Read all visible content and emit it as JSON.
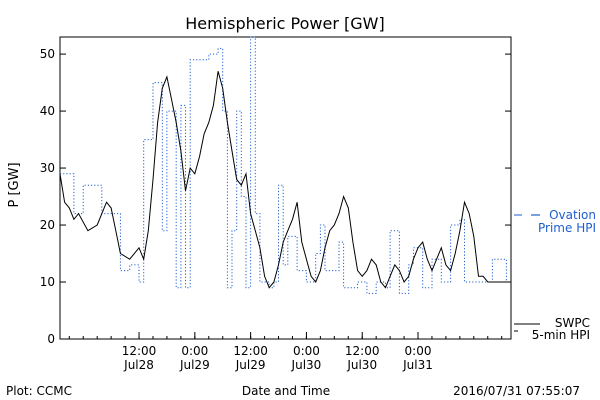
{
  "chart_data": {
    "type": "line",
    "title": "Hemispheric Power [GW]",
    "ylabel": "P [GW]",
    "xlabel": "Date and Time",
    "ylim": [
      0,
      53
    ],
    "xlim": [
      "2016-07-27 19:00",
      "2016-07-31 20:00"
    ],
    "yticks": [
      0,
      10,
      20,
      30,
      40,
      50
    ],
    "xticks": [
      {
        "time": "2016-07-28 12:00",
        "label1": "12:00",
        "label2": "Jul28"
      },
      {
        "time": "2016-07-29 00:00",
        "label1": "0:00",
        "label2": "Jul29"
      },
      {
        "time": "2016-07-29 12:00",
        "label1": "12:00",
        "label2": "Jul29"
      },
      {
        "time": "2016-07-30 00:00",
        "label1": "0:00",
        "label2": "Jul30"
      },
      {
        "time": "2016-07-30 12:00",
        "label1": "12:00",
        "label2": "Jul30"
      },
      {
        "time": "2016-07-31 00:00",
        "label1": "0:00",
        "label2": "Jul31"
      }
    ],
    "grid": false,
    "series": [
      {
        "name": "SWPC 5-min HPI",
        "legend_line1": "SWPC",
        "legend_line2": "5-min HPI",
        "color": "#000000",
        "style": "solid",
        "points": [
          [
            "2016-07-27 19:00",
            29
          ],
          [
            "2016-07-27 20:00",
            24
          ],
          [
            "2016-07-27 21:00",
            23
          ],
          [
            "2016-07-27 22:00",
            21
          ],
          [
            "2016-07-27 23:00",
            22
          ],
          [
            "2016-07-28 01:00",
            19
          ],
          [
            "2016-07-28 03:00",
            20
          ],
          [
            "2016-07-28 05:00",
            24
          ],
          [
            "2016-07-28 06:00",
            23
          ],
          [
            "2016-07-28 07:00",
            19
          ],
          [
            "2016-07-28 08:00",
            15
          ],
          [
            "2016-07-28 10:00",
            14
          ],
          [
            "2016-07-28 12:00",
            16
          ],
          [
            "2016-07-28 13:00",
            14
          ],
          [
            "2016-07-28 14:00",
            19
          ],
          [
            "2016-07-28 15:00",
            28
          ],
          [
            "2016-07-28 16:00",
            38
          ],
          [
            "2016-07-28 17:00",
            44
          ],
          [
            "2016-07-28 18:00",
            46
          ],
          [
            "2016-07-28 19:00",
            42
          ],
          [
            "2016-07-28 20:00",
            38
          ],
          [
            "2016-07-28 21:00",
            33
          ],
          [
            "2016-07-28 22:00",
            26
          ],
          [
            "2016-07-28 23:00",
            30
          ],
          [
            "2016-07-29 00:00",
            29
          ],
          [
            "2016-07-29 01:00",
            32
          ],
          [
            "2016-07-29 02:00",
            36
          ],
          [
            "2016-07-29 03:00",
            38
          ],
          [
            "2016-07-29 04:00",
            41
          ],
          [
            "2016-07-29 05:00",
            47
          ],
          [
            "2016-07-29 06:00",
            44
          ],
          [
            "2016-07-29 07:00",
            38
          ],
          [
            "2016-07-29 08:00",
            33
          ],
          [
            "2016-07-29 09:00",
            28
          ],
          [
            "2016-07-29 10:00",
            27
          ],
          [
            "2016-07-29 11:00",
            29
          ],
          [
            "2016-07-29 12:00",
            22
          ],
          [
            "2016-07-29 13:00",
            19
          ],
          [
            "2016-07-29 14:00",
            16
          ],
          [
            "2016-07-29 15:00",
            11
          ],
          [
            "2016-07-29 16:00",
            9
          ],
          [
            "2016-07-29 17:00",
            10
          ],
          [
            "2016-07-29 18:00",
            13
          ],
          [
            "2016-07-29 19:00",
            17
          ],
          [
            "2016-07-29 20:00",
            19
          ],
          [
            "2016-07-29 21:00",
            21
          ],
          [
            "2016-07-29 22:00",
            24
          ],
          [
            "2016-07-29 23:00",
            17
          ],
          [
            "2016-07-30 00:00",
            14
          ],
          [
            "2016-07-30 01:00",
            11
          ],
          [
            "2016-07-30 02:00",
            10
          ],
          [
            "2016-07-30 03:00",
            12
          ],
          [
            "2016-07-30 04:00",
            16
          ],
          [
            "2016-07-30 05:00",
            19
          ],
          [
            "2016-07-30 06:00",
            20
          ],
          [
            "2016-07-30 07:00",
            22
          ],
          [
            "2016-07-30 08:00",
            25
          ],
          [
            "2016-07-30 09:00",
            23
          ],
          [
            "2016-07-30 10:00",
            17
          ],
          [
            "2016-07-30 11:00",
            12
          ],
          [
            "2016-07-30 12:00",
            11
          ],
          [
            "2016-07-30 13:00",
            12
          ],
          [
            "2016-07-30 14:00",
            14
          ],
          [
            "2016-07-30 15:00",
            13
          ],
          [
            "2016-07-30 16:00",
            10
          ],
          [
            "2016-07-30 17:00",
            9
          ],
          [
            "2016-07-30 18:00",
            11
          ],
          [
            "2016-07-30 19:00",
            13
          ],
          [
            "2016-07-30 20:00",
            12
          ],
          [
            "2016-07-30 21:00",
            10
          ],
          [
            "2016-07-30 22:00",
            11
          ],
          [
            "2016-07-30 23:00",
            14
          ],
          [
            "2016-07-31 00:00",
            16
          ],
          [
            "2016-07-31 01:00",
            17
          ],
          [
            "2016-07-31 02:00",
            14
          ],
          [
            "2016-07-31 03:00",
            12
          ],
          [
            "2016-07-31 04:00",
            14
          ],
          [
            "2016-07-31 05:00",
            16
          ],
          [
            "2016-07-31 06:00",
            13
          ],
          [
            "2016-07-31 07:00",
            12
          ],
          [
            "2016-07-31 08:00",
            15
          ],
          [
            "2016-07-31 09:00",
            19
          ],
          [
            "2016-07-31 10:00",
            24
          ],
          [
            "2016-07-31 11:00",
            22
          ],
          [
            "2016-07-31 12:00",
            18
          ],
          [
            "2016-07-31 13:00",
            11
          ],
          [
            "2016-07-31 14:00",
            11
          ],
          [
            "2016-07-31 15:00",
            10
          ],
          [
            "2016-07-31 16:00",
            10
          ],
          [
            "2016-07-31 17:00",
            10
          ],
          [
            "2016-07-31 18:00",
            10
          ],
          [
            "2016-07-31 19:00",
            10
          ]
        ]
      },
      {
        "name": "Ovation Prime HPI",
        "legend_line1": "Ovation",
        "legend_line2": "Prime HPI",
        "color": "#1f5fd0",
        "style": "dotted",
        "points": [
          [
            "2016-07-27 19:00",
            29
          ],
          [
            "2016-07-27 22:00",
            22
          ],
          [
            "2016-07-28 00:00",
            27
          ],
          [
            "2016-07-28 04:00",
            22
          ],
          [
            "2016-07-28 08:00",
            12
          ],
          [
            "2016-07-28 10:00",
            13
          ],
          [
            "2016-07-28 12:00",
            10
          ],
          [
            "2016-07-28 13:00",
            35
          ],
          [
            "2016-07-28 15:00",
            45
          ],
          [
            "2016-07-28 17:00",
            19
          ],
          [
            "2016-07-28 18:00",
            40
          ],
          [
            "2016-07-28 20:00",
            9
          ],
          [
            "2016-07-28 21:00",
            41
          ],
          [
            "2016-07-28 22:00",
            9
          ],
          [
            "2016-07-28 23:00",
            49
          ],
          [
            "2016-07-29 03:00",
            50
          ],
          [
            "2016-07-29 05:00",
            51
          ],
          [
            "2016-07-29 06:00",
            40
          ],
          [
            "2016-07-29 07:00",
            9
          ],
          [
            "2016-07-29 08:00",
            19
          ],
          [
            "2016-07-29 09:00",
            40
          ],
          [
            "2016-07-29 10:00",
            25
          ],
          [
            "2016-07-29 11:00",
            9
          ],
          [
            "2016-07-29 12:00",
            53
          ],
          [
            "2016-07-29 13:00",
            22
          ],
          [
            "2016-07-29 14:00",
            10
          ],
          [
            "2016-07-29 16:00",
            9
          ],
          [
            "2016-07-29 17:00",
            10
          ],
          [
            "2016-07-29 18:00",
            27
          ],
          [
            "2016-07-29 19:00",
            13
          ],
          [
            "2016-07-29 20:00",
            18
          ],
          [
            "2016-07-29 22:00",
            12
          ],
          [
            "2016-07-30 00:00",
            10
          ],
          [
            "2016-07-30 02:00",
            15
          ],
          [
            "2016-07-30 03:00",
            20
          ],
          [
            "2016-07-30 04:00",
            12
          ],
          [
            "2016-07-30 07:00",
            17
          ],
          [
            "2016-07-30 08:00",
            9
          ],
          [
            "2016-07-30 10:00",
            9
          ],
          [
            "2016-07-30 11:00",
            10
          ],
          [
            "2016-07-30 13:00",
            8
          ],
          [
            "2016-07-30 15:00",
            10
          ],
          [
            "2016-07-30 17:00",
            9
          ],
          [
            "2016-07-30 18:00",
            19
          ],
          [
            "2016-07-30 20:00",
            8
          ],
          [
            "2016-07-30 22:00",
            13
          ],
          [
            "2016-07-30 23:00",
            16
          ],
          [
            "2016-07-31 01:00",
            9
          ],
          [
            "2016-07-31 03:00",
            14
          ],
          [
            "2016-07-31 05:00",
            10
          ],
          [
            "2016-07-31 07:00",
            20
          ],
          [
            "2016-07-31 09:00",
            21
          ],
          [
            "2016-07-31 10:00",
            10
          ],
          [
            "2016-07-31 16:00",
            14
          ],
          [
            "2016-07-31 19:00",
            10
          ]
        ]
      }
    ]
  },
  "footer": {
    "left": "Plot: CCMC",
    "timestamp": "2016/07/31 07:55:07"
  },
  "colors": {
    "axis": "#000000",
    "swpc": "#000000",
    "ovation": "#1f5fd0"
  }
}
